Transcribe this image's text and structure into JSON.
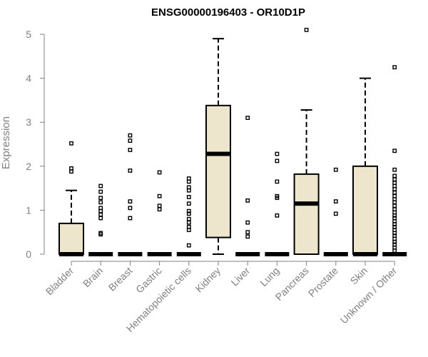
{
  "chart_data": {
    "type": "boxplot",
    "title": "ENSG00000196403 - OR10D1P",
    "xlabel": "",
    "ylabel": "Expression",
    "ylim": [
      0,
      5
    ],
    "yticks": [
      "0",
      "1",
      "2",
      "3",
      "4",
      "5"
    ],
    "box_fill": "#ede6cc",
    "categories": [
      "Bladder",
      "Brain",
      "Breast",
      "Gastric",
      "Hematopoietic cells",
      "Kidney",
      "Liver",
      "Lung",
      "Pancreas",
      "Prostate",
      "Skin",
      "Unknown / Other"
    ],
    "boxes": [
      {
        "name": "Bladder",
        "q1": 0,
        "median": 0,
        "q3": 0.7,
        "whisker_low": 0,
        "whisker_high": 1.45,
        "outliers": [
          1.88,
          1.95,
          2.52
        ]
      },
      {
        "name": "Brain",
        "q1": 0,
        "median": 0,
        "q3": 0,
        "whisker_low": 0,
        "whisker_high": 0,
        "outliers": [
          0.45,
          0.48,
          0.82,
          0.9,
          0.98,
          1.05,
          1.18,
          1.28,
          1.42,
          1.55
        ]
      },
      {
        "name": "Breast",
        "q1": 0,
        "median": 0,
        "q3": 0,
        "whisker_low": 0,
        "whisker_high": 0,
        "outliers": [
          0.82,
          1.05,
          1.2,
          1.9,
          2.37,
          2.58,
          2.7
        ]
      },
      {
        "name": "Gastric",
        "q1": 0,
        "median": 0,
        "q3": 0,
        "whisker_low": 0,
        "whisker_high": 0,
        "outliers": [
          1.02,
          1.1,
          1.32,
          1.86
        ]
      },
      {
        "name": "Hematopoietic cells",
        "q1": 0,
        "median": 0,
        "q3": 0,
        "whisker_low": 0,
        "whisker_high": 0,
        "outliers": [
          0.2,
          0.55,
          0.62,
          0.72,
          0.8,
          0.92,
          0.98,
          1.15,
          1.3,
          1.45,
          1.52,
          1.65,
          1.72
        ]
      },
      {
        "name": "Kidney",
        "q1": 0.38,
        "median": 2.28,
        "q3": 3.38,
        "whisker_low": 0,
        "whisker_high": 4.9,
        "outliers": []
      },
      {
        "name": "Liver",
        "q1": 0,
        "median": 0,
        "q3": 0,
        "whisker_low": 0,
        "whisker_high": 0,
        "outliers": [
          0.4,
          0.5,
          0.72,
          1.22,
          3.1
        ]
      },
      {
        "name": "Lung",
        "q1": 0,
        "median": 0,
        "q3": 0,
        "whisker_low": 0,
        "whisker_high": 0,
        "outliers": [
          0.88,
          1.28,
          1.32,
          1.65,
          2.12,
          2.28
        ]
      },
      {
        "name": "Pancreas",
        "q1": 0,
        "median": 1.15,
        "q3": 1.82,
        "whisker_low": 0,
        "whisker_high": 3.28,
        "outliers": [
          5.1
        ]
      },
      {
        "name": "Prostate",
        "q1": 0,
        "median": 0,
        "q3": 0,
        "whisker_low": 0,
        "whisker_high": 0,
        "outliers": [
          0.92,
          1.2,
          1.92
        ]
      },
      {
        "name": "Skin",
        "q1": 0,
        "median": 0,
        "q3": 2.0,
        "whisker_low": 0,
        "whisker_high": 4.0,
        "outliers": []
      },
      {
        "name": "Unknown / Other",
        "q1": 0,
        "median": 0,
        "q3": 0,
        "whisker_low": 0,
        "whisker_high": 0,
        "outliers": [
          0.08,
          0.15,
          0.22,
          0.28,
          0.35,
          0.42,
          0.48,
          0.55,
          0.62,
          0.68,
          0.75,
          0.82,
          0.88,
          0.95,
          1.02,
          1.1,
          1.18,
          1.25,
          1.32,
          1.4,
          1.48,
          1.55,
          1.62,
          1.7,
          1.78,
          1.92,
          2.35,
          4.25
        ]
      }
    ]
  }
}
